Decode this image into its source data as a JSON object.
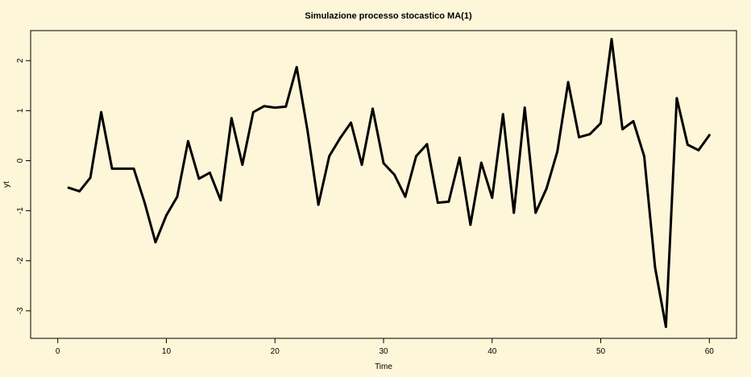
{
  "chart_data": {
    "type": "line",
    "title": "Simulazione processo stocastico MA(1)",
    "xlabel": "Time",
    "ylabel": "yt",
    "xlim": [
      -2.5,
      62.5
    ],
    "ylim": [
      -3.55,
      2.6
    ],
    "xticks": [
      0,
      10,
      20,
      30,
      40,
      50,
      60
    ],
    "yticks": [
      -3,
      -2,
      -1,
      0,
      1,
      2
    ],
    "grid": false,
    "series": [
      {
        "color": "#000000",
        "x": [
          1,
          2,
          3,
          4,
          5,
          6,
          7,
          8,
          9,
          10,
          11,
          12,
          13,
          14,
          15,
          16,
          17,
          18,
          19,
          20,
          21,
          22,
          23,
          24,
          25,
          26,
          27,
          28,
          29,
          30,
          31,
          32,
          33,
          34,
          35,
          36,
          37,
          38,
          39,
          40,
          41,
          42,
          43,
          44,
          45,
          46,
          47,
          48,
          49,
          50,
          51,
          52,
          53,
          54,
          55,
          56,
          57,
          58,
          59,
          60
        ],
        "values": [
          -0.54,
          -0.61,
          -0.34,
          0.97,
          -0.16,
          -0.16,
          -0.16,
          -0.84,
          -1.63,
          -1.09,
          -0.72,
          0.39,
          -0.36,
          -0.24,
          -0.79,
          0.85,
          -0.08,
          0.97,
          1.09,
          1.06,
          1.08,
          1.87,
          0.6,
          -0.88,
          0.09,
          0.45,
          0.76,
          -0.08,
          1.04,
          -0.05,
          -0.28,
          -0.72,
          0.09,
          0.33,
          -0.84,
          -0.82,
          0.06,
          -1.28,
          -0.04,
          -0.74,
          0.93,
          -1.04,
          1.06,
          -1.04,
          -0.56,
          0.18,
          1.57,
          0.47,
          0.53,
          0.75,
          2.43,
          0.63,
          0.79,
          0.09,
          -2.13,
          -3.32,
          1.25,
          0.32,
          0.21,
          0.51
        ]
      }
    ]
  }
}
